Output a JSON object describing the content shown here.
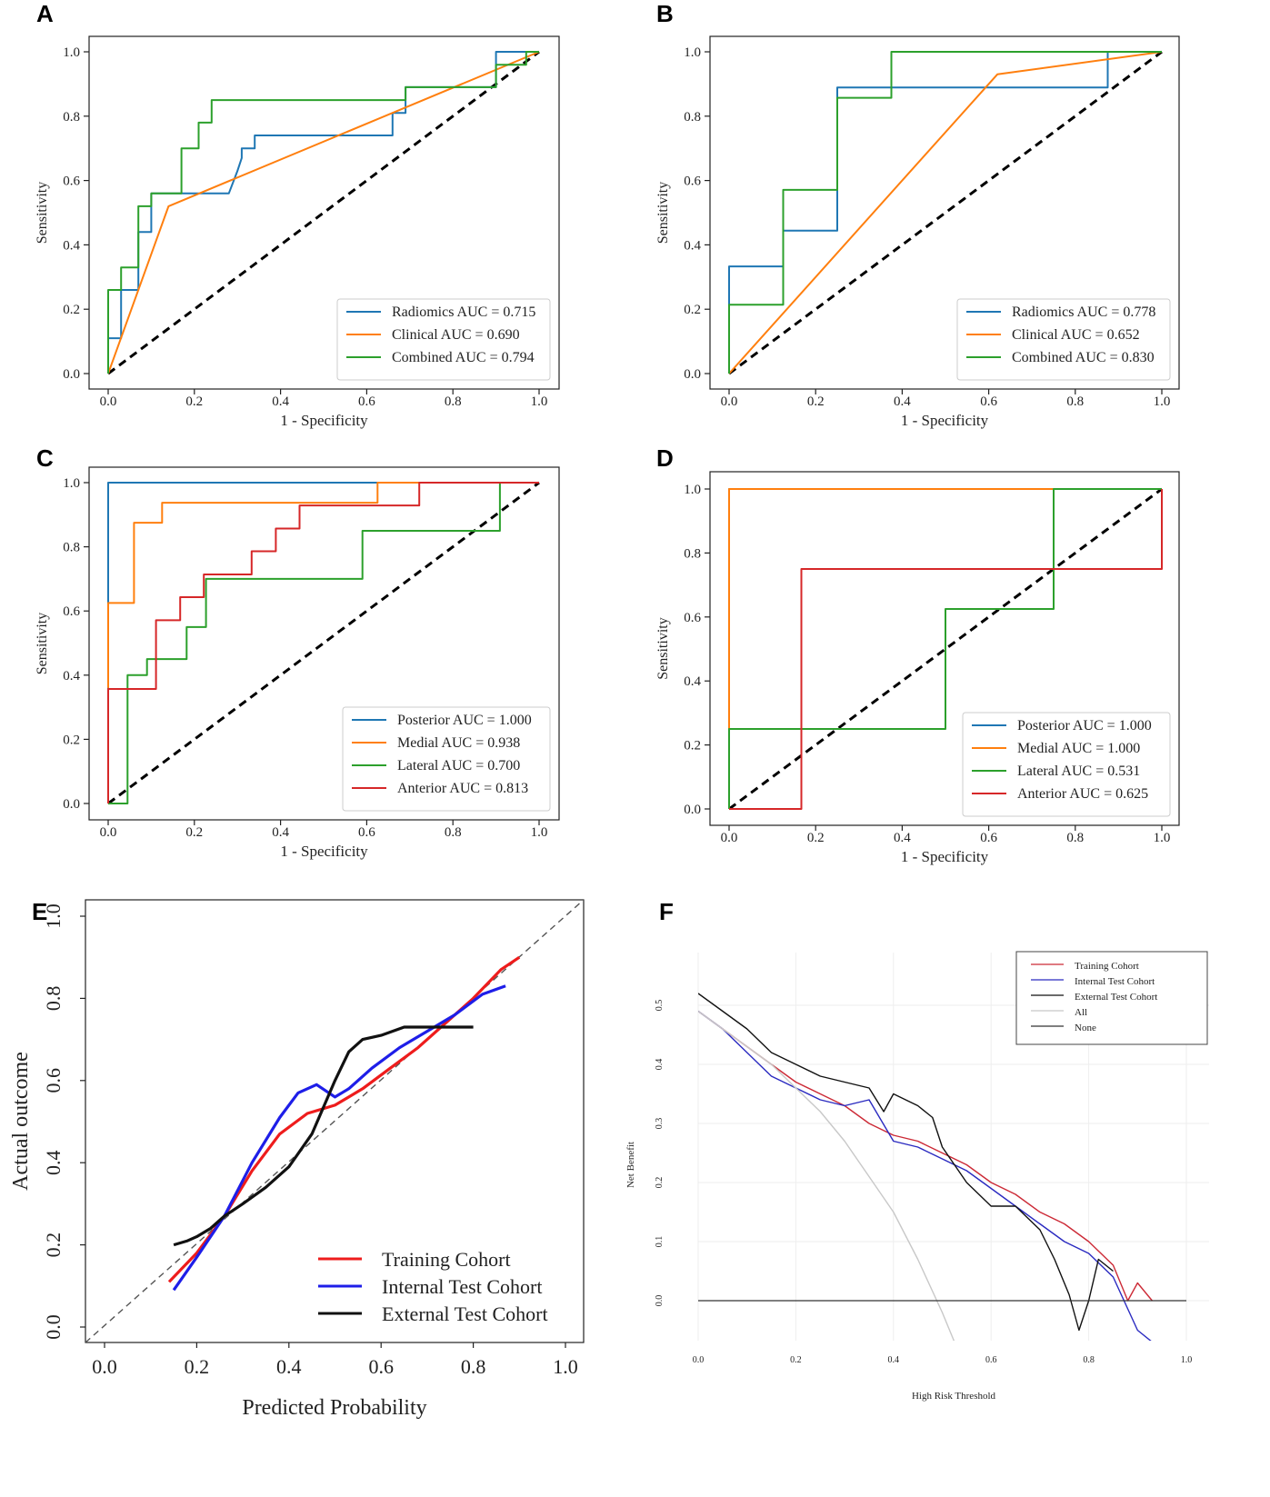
{
  "panels": {
    "a": {
      "label": "A"
    },
    "b": {
      "label": "B"
    },
    "c": {
      "label": "C"
    },
    "d": {
      "label": "D"
    },
    "e": {
      "label": "E"
    },
    "f": {
      "label": "F"
    }
  },
  "chart_data": [
    {
      "id": "A",
      "type": "line",
      "xlabel": "1 - Specificity",
      "ylabel": "Sensitivity",
      "xlim": [
        0,
        1
      ],
      "ylim": [
        0,
        1
      ],
      "xticks": [
        "0.0",
        "0.2",
        "0.4",
        "0.6",
        "0.8",
        "1.0"
      ],
      "yticks": [
        "0.0",
        "0.2",
        "0.4",
        "0.6",
        "0.8",
        "1.0"
      ],
      "legend_position": "bottom-right",
      "reference_line": "diagonal dashed",
      "series": [
        {
          "name": "Radiomics AUC = 0.715",
          "color": "#1f77b4",
          "x": [
            0,
            0,
            0.03,
            0.03,
            0.07,
            0.07,
            0.1,
            0.1,
            0.28,
            0.3,
            0.31,
            0.31,
            0.34,
            0.34,
            0.66,
            0.66,
            0.69,
            0.69,
            0.9,
            0.9,
            1.0
          ],
          "y": [
            0,
            0.11,
            0.11,
            0.26,
            0.26,
            0.44,
            0.44,
            0.56,
            0.56,
            0.63,
            0.67,
            0.7,
            0.7,
            0.74,
            0.74,
            0.81,
            0.81,
            0.89,
            0.89,
            1.0,
            1.0
          ]
        },
        {
          "name": "Clinical AUC = 0.690",
          "color": "#ff7f0e",
          "x": [
            0,
            0.14,
            1.0
          ],
          "y": [
            0,
            0.52,
            1.0
          ]
        },
        {
          "name": "Combined AUC = 0.794",
          "color": "#2ca02c",
          "x": [
            0,
            0,
            0.03,
            0.03,
            0.07,
            0.07,
            0.1,
            0.1,
            0.17,
            0.17,
            0.21,
            0.21,
            0.24,
            0.24,
            0.69,
            0.69,
            0.9,
            0.9,
            0.97,
            0.97,
            1.0
          ],
          "y": [
            0,
            0.26,
            0.26,
            0.33,
            0.33,
            0.52,
            0.52,
            0.56,
            0.56,
            0.7,
            0.7,
            0.78,
            0.78,
            0.85,
            0.85,
            0.89,
            0.89,
            0.96,
            0.96,
            1.0,
            1.0
          ]
        }
      ]
    },
    {
      "id": "B",
      "type": "line",
      "xlabel": "1 - Specificity",
      "ylabel": "Sensitivity",
      "xlim": [
        0,
        1
      ],
      "ylim": [
        0,
        1
      ],
      "xticks": [
        "0.0",
        "0.2",
        "0.4",
        "0.6",
        "0.8",
        "1.0"
      ],
      "yticks": [
        "0.0",
        "0.2",
        "0.4",
        "0.6",
        "0.8",
        "1.0"
      ],
      "legend_position": "bottom-right",
      "reference_line": "diagonal dashed",
      "series": [
        {
          "name": "Radiomics AUC = 0.778",
          "color": "#1f77b4",
          "x": [
            0,
            0,
            0.125,
            0.125,
            0.25,
            0.25,
            0.875,
            0.875,
            1.0
          ],
          "y": [
            0,
            0.333,
            0.333,
            0.444,
            0.444,
            0.889,
            0.889,
            1.0,
            1.0
          ]
        },
        {
          "name": "Clinical AUC = 0.652",
          "color": "#ff7f0e",
          "x": [
            0,
            0.62,
            1.0
          ],
          "y": [
            0,
            0.93,
            1.0
          ]
        },
        {
          "name": "Combined AUC = 0.830",
          "color": "#2ca02c",
          "x": [
            0,
            0,
            0.125,
            0.125,
            0.25,
            0.25,
            0.375,
            0.375,
            1.0
          ],
          "y": [
            0,
            0.214,
            0.214,
            0.571,
            0.571,
            0.857,
            0.857,
            1.0,
            1.0
          ]
        }
      ]
    },
    {
      "id": "C",
      "type": "line",
      "xlabel": "1 - Specificity",
      "ylabel": "Sensitivity",
      "xlim": [
        0,
        1
      ],
      "ylim": [
        0,
        1
      ],
      "xticks": [
        "0.0",
        "0.2",
        "0.4",
        "0.6",
        "0.8",
        "1.0"
      ],
      "yticks": [
        "0.0",
        "0.2",
        "0.4",
        "0.6",
        "0.8",
        "1.0"
      ],
      "legend_position": "bottom-right",
      "reference_line": "diagonal dashed",
      "series": [
        {
          "name": "Posterior AUC = 1.000",
          "color": "#1f77b4",
          "x": [
            0,
            0,
            0,
            0.62,
            1.0
          ],
          "y": [
            0,
            0.625,
            1.0,
            1.0,
            1.0
          ]
        },
        {
          "name": "Medial AUC = 0.938",
          "color": "#ff7f0e",
          "x": [
            0,
            0,
            0.06,
            0.06,
            0.125,
            0.125,
            0.625,
            0.625,
            1.0
          ],
          "y": [
            0.36,
            0.625,
            0.625,
            0.875,
            0.875,
            0.9375,
            0.9375,
            1.0,
            1.0
          ]
        },
        {
          "name": "Lateral AUC = 0.700",
          "color": "#2ca02c",
          "x": [
            0,
            0.045,
            0.045,
            0.09,
            0.09,
            0.136,
            0.136,
            0.182,
            0.182,
            0.227,
            0.227,
            0.59,
            0.59,
            0.909,
            0.909,
            1.0
          ],
          "y": [
            0,
            0,
            0.4,
            0.4,
            0.45,
            0.45,
            0.45,
            0.45,
            0.55,
            0.55,
            0.7,
            0.7,
            0.85,
            0.85,
            1.0,
            1.0
          ]
        },
        {
          "name": "Anterior AUC = 0.813",
          "color": "#d62728",
          "x": [
            0,
            0,
            0.111,
            0.111,
            0.167,
            0.167,
            0.222,
            0.222,
            0.333,
            0.333,
            0.389,
            0.389,
            0.444,
            0.444,
            0.722,
            0.722,
            1.0
          ],
          "y": [
            0,
            0.357,
            0.357,
            0.571,
            0.571,
            0.643,
            0.643,
            0.714,
            0.714,
            0.786,
            0.786,
            0.857,
            0.857,
            0.929,
            0.929,
            1.0,
            1.0
          ]
        }
      ]
    },
    {
      "id": "D",
      "type": "line",
      "xlabel": "1 - Specificity",
      "ylabel": "Sensitivity",
      "xlim": [
        0,
        1
      ],
      "ylim": [
        0,
        1
      ],
      "xticks": [
        "0.0",
        "0.2",
        "0.4",
        "0.6",
        "0.8",
        "1.0"
      ],
      "yticks": [
        "0.0",
        "0.2",
        "0.4",
        "0.6",
        "0.8",
        "1.0"
      ],
      "legend_position": "bottom-right",
      "reference_line": "diagonal dashed",
      "series": [
        {
          "name": "Posterior AUC = 1.000",
          "color": "#1f77b4",
          "x": [
            0,
            0,
            1.0
          ],
          "y": [
            0,
            1.0,
            1.0
          ]
        },
        {
          "name": "Medial AUC = 1.000",
          "color": "#ff7f0e",
          "x": [
            0,
            0,
            1.0
          ],
          "y": [
            0,
            1.0,
            1.0
          ]
        },
        {
          "name": "Lateral AUC = 0.531",
          "color": "#2ca02c",
          "x": [
            0,
            0,
            0.5,
            0.5,
            0.75,
            0.75,
            1.0,
            1.0
          ],
          "y": [
            0,
            0.25,
            0.25,
            0.625,
            0.625,
            1.0,
            1.0,
            1.0
          ]
        },
        {
          "name": "Anterior AUC = 0.625",
          "color": "#d62728",
          "x": [
            0,
            0.167,
            0.167,
            1.0,
            1.0
          ],
          "y": [
            0,
            0,
            0.75,
            0.75,
            1.0
          ]
        }
      ]
    },
    {
      "id": "E",
      "type": "line",
      "xlabel": "Predicted Probability",
      "ylabel": "Actual outcome",
      "xlim": [
        0,
        1
      ],
      "ylim": [
        0,
        1
      ],
      "xticks": [
        "0.0",
        "0.2",
        "0.4",
        "0.6",
        "0.8",
        "1.0"
      ],
      "yticks": [
        "0.0",
        "0.2",
        "0.4",
        "0.6",
        "0.8",
        "1.0"
      ],
      "legend_position": "bottom-right",
      "reference_line": "diagonal dashed grey",
      "series": [
        {
          "name": "Training Cohort",
          "color": "#ee1c1c",
          "x": [
            0.14,
            0.2,
            0.26,
            0.32,
            0.38,
            0.44,
            0.5,
            0.56,
            0.62,
            0.68,
            0.74,
            0.8,
            0.86,
            0.9
          ],
          "y": [
            0.11,
            0.18,
            0.27,
            0.38,
            0.47,
            0.52,
            0.54,
            0.58,
            0.63,
            0.68,
            0.74,
            0.8,
            0.87,
            0.9
          ]
        },
        {
          "name": "Internal Test Cohort",
          "color": "#1e1ee8",
          "x": [
            0.15,
            0.2,
            0.26,
            0.32,
            0.38,
            0.42,
            0.46,
            0.5,
            0.53,
            0.58,
            0.64,
            0.7,
            0.76,
            0.82,
            0.87
          ],
          "y": [
            0.09,
            0.17,
            0.27,
            0.4,
            0.51,
            0.57,
            0.59,
            0.56,
            0.58,
            0.63,
            0.68,
            0.72,
            0.76,
            0.81,
            0.83
          ]
        },
        {
          "name": "External Test Cohort",
          "color": "#111111",
          "x": [
            0.15,
            0.18,
            0.2,
            0.23,
            0.26,
            0.3,
            0.35,
            0.4,
            0.45,
            0.5,
            0.53,
            0.56,
            0.6,
            0.65,
            0.7,
            0.75,
            0.8
          ],
          "y": [
            0.2,
            0.21,
            0.22,
            0.24,
            0.27,
            0.3,
            0.34,
            0.39,
            0.47,
            0.6,
            0.67,
            0.7,
            0.71,
            0.73,
            0.73,
            0.73,
            0.73
          ]
        }
      ]
    },
    {
      "id": "F",
      "type": "line",
      "xlabel": "High Risk Threshold",
      "ylabel": "Net Benefit",
      "xlim": [
        0,
        1
      ],
      "ylim": [
        -0.08,
        0.55
      ],
      "xticks": [
        "0.0",
        "0.2",
        "0.4",
        "0.6",
        "0.8",
        "1.0"
      ],
      "yticks": [
        "0.0",
        "0.1",
        "0.2",
        "0.3",
        "0.4",
        "0.5"
      ],
      "legend_position": "top-right",
      "series": [
        {
          "name": "Training Cohort",
          "color": "#cc2a36",
          "x": [
            0,
            0.05,
            0.1,
            0.15,
            0.2,
            0.25,
            0.3,
            0.35,
            0.4,
            0.45,
            0.5,
            0.55,
            0.6,
            0.65,
            0.7,
            0.75,
            0.8,
            0.85,
            0.88,
            0.9,
            0.92,
            0.93
          ],
          "y": [
            0.49,
            0.46,
            0.43,
            0.4,
            0.37,
            0.35,
            0.33,
            0.3,
            0.28,
            0.27,
            0.25,
            0.23,
            0.2,
            0.18,
            0.15,
            0.13,
            0.1,
            0.06,
            0.0,
            0.03,
            0.01,
            0.0
          ]
        },
        {
          "name": "Internal Test Cohort",
          "color": "#2a2ac0",
          "x": [
            0,
            0.05,
            0.1,
            0.15,
            0.2,
            0.25,
            0.3,
            0.35,
            0.4,
            0.45,
            0.5,
            0.55,
            0.6,
            0.65,
            0.7,
            0.75,
            0.8,
            0.85,
            0.9,
            0.93
          ],
          "y": [
            0.49,
            0.46,
            0.42,
            0.38,
            0.36,
            0.34,
            0.33,
            0.34,
            0.27,
            0.26,
            0.24,
            0.22,
            0.19,
            0.16,
            0.13,
            0.1,
            0.08,
            0.04,
            -0.05,
            -0.07
          ]
        },
        {
          "name": "External Test Cohort",
          "color": "#111111",
          "x": [
            0,
            0.05,
            0.1,
            0.15,
            0.2,
            0.25,
            0.3,
            0.35,
            0.38,
            0.4,
            0.45,
            0.48,
            0.5,
            0.55,
            0.6,
            0.65,
            0.7,
            0.73,
            0.76,
            0.78,
            0.8,
            0.82,
            0.85
          ],
          "y": [
            0.52,
            0.49,
            0.46,
            0.42,
            0.4,
            0.38,
            0.37,
            0.36,
            0.32,
            0.35,
            0.33,
            0.31,
            0.26,
            0.2,
            0.16,
            0.16,
            0.12,
            0.07,
            0.01,
            -0.05,
            0.0,
            0.07,
            0.05
          ]
        },
        {
          "name": "All",
          "color": "#c8c8c8",
          "x": [
            0,
            0.05,
            0.1,
            0.15,
            0.2,
            0.25,
            0.3,
            0.35,
            0.4,
            0.45,
            0.5,
            0.53
          ],
          "y": [
            0.49,
            0.46,
            0.43,
            0.4,
            0.36,
            0.32,
            0.27,
            0.21,
            0.15,
            0.07,
            -0.02,
            -0.08
          ]
        },
        {
          "name": "None",
          "color": "#333333",
          "x": [
            0,
            1.0
          ],
          "y": [
            0,
            0
          ]
        }
      ]
    }
  ]
}
